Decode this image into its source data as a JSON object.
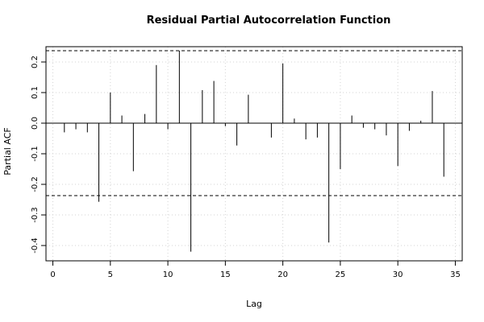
{
  "chart_data": {
    "type": "bar",
    "title": "Residual Partial Autocorrelation Function",
    "xlabel": "Lag",
    "ylabel": "Partial ACF",
    "xlim": [
      0,
      35
    ],
    "ylim": [
      -0.45,
      0.25
    ],
    "x_ticks": [
      0,
      5,
      10,
      15,
      20,
      25,
      30,
      35
    ],
    "y_ticks": [
      -0.4,
      -0.3,
      -0.2,
      -0.1,
      0.0,
      0.1,
      0.2
    ],
    "y_tick_labels": [
      "-0.4",
      "-0.3",
      "-0.2",
      "-0.1",
      "0.0",
      "0.1",
      "0.2"
    ],
    "grid": true,
    "confidence_bounds": [
      0.237,
      -0.237
    ],
    "lags": [
      1,
      2,
      3,
      4,
      5,
      6,
      7,
      8,
      9,
      10,
      11,
      12,
      13,
      14,
      15,
      16,
      17,
      18,
      19,
      20,
      21,
      22,
      23,
      24,
      25,
      26,
      27,
      28,
      29,
      30,
      31,
      32,
      33,
      34
    ],
    "values": [
      -0.03,
      -0.02,
      -0.03,
      -0.257,
      0.1,
      0.025,
      -0.157,
      0.03,
      0.19,
      -0.02,
      0.237,
      -0.42,
      0.108,
      0.138,
      -0.01,
      -0.073,
      0.093,
      0.0,
      -0.047,
      0.195,
      0.015,
      -0.053,
      -0.047,
      -0.39,
      -0.15,
      0.025,
      -0.015,
      -0.02,
      -0.04,
      -0.14,
      -0.025,
      0.008,
      0.105,
      -0.175
    ],
    "colors": {
      "bars": "#000000",
      "zero_line": "#000000",
      "bounds": "#000000",
      "grid": "#d3d3d3",
      "frame": "#000000"
    }
  }
}
